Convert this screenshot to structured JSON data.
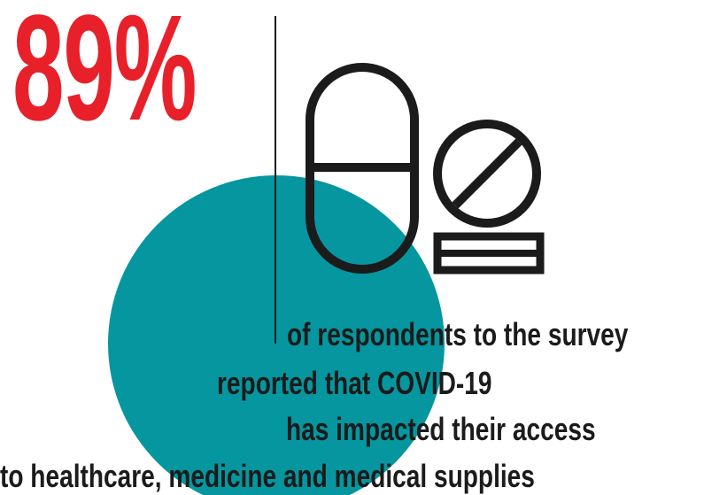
{
  "headline": {
    "value": "89%"
  },
  "caption": {
    "lines": [
      "of respondents to the survey",
      "reported that COVID-19",
      "has impacted their access",
      "to healthcare, medicine and medical supplies"
    ]
  },
  "icons": {
    "capsule": "capsule-pill-icon",
    "tablet": "tablet-pill-icon"
  },
  "colors": {
    "accent_red": "#e8202a",
    "teal": "#06969f",
    "ink": "#1b1b1b",
    "background": "#ffffff"
  }
}
